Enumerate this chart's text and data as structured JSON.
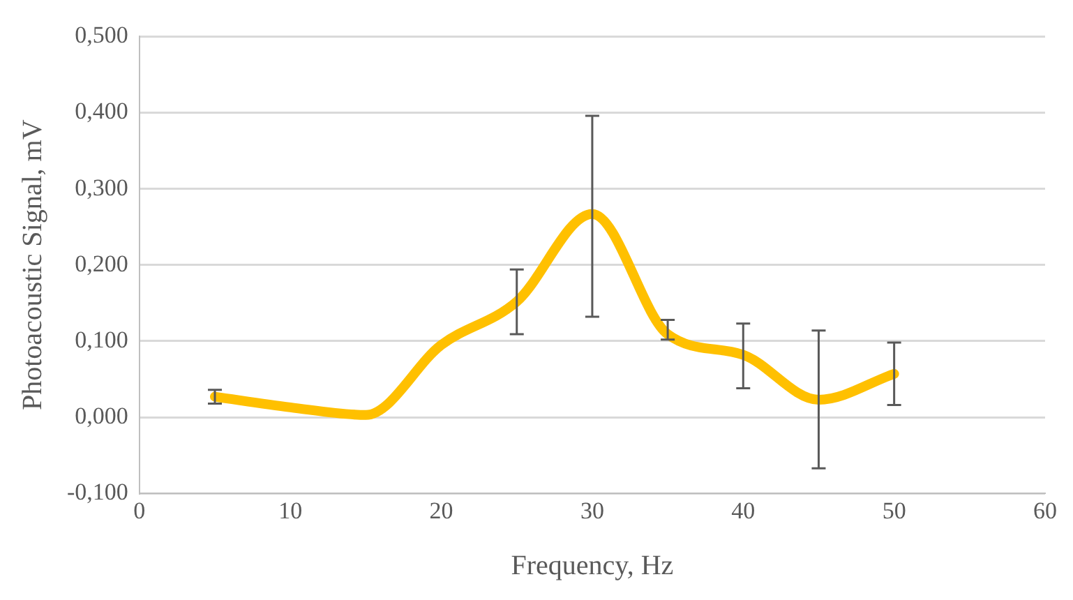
{
  "chart_data": {
    "type": "line",
    "xlabel": "Frequency, Hz",
    "ylabel": "Photoacoustic Signal, mV",
    "x": [
      5,
      10,
      15,
      20,
      25,
      30,
      35,
      40,
      45,
      50
    ],
    "series": [
      {
        "color": "#ffc000",
        "values": [
          0.027,
          0.013,
          0.003,
          0.095,
          0.152,
          0.267,
          0.109,
          0.082,
          0.023,
          0.057
        ],
        "errors": [
          [
            0.018,
            0.036
          ],
          null,
          null,
          null,
          [
            0.109,
            0.194
          ],
          [
            0.132,
            0.396
          ],
          [
            0.102,
            0.128
          ],
          [
            0.038,
            0.123
          ],
          [
            -0.067,
            0.114
          ],
          [
            0.016,
            0.098
          ]
        ]
      }
    ],
    "xlim": [
      0,
      60
    ],
    "xticks": [
      0,
      10,
      20,
      30,
      40,
      50,
      60
    ],
    "ylim": [
      -0.1,
      0.5
    ],
    "yticks": [
      {
        "value": -0.1,
        "label": "-0,100"
      },
      {
        "value": 0,
        "label": "0,000"
      },
      {
        "value": 0.1,
        "label": "0,100"
      },
      {
        "value": 0.2,
        "label": "0,200"
      },
      {
        "value": 0.3,
        "label": "0,300"
      },
      {
        "value": 0.4,
        "label": "0,400"
      },
      {
        "value": 0.5,
        "label": "0,500"
      }
    ],
    "grid": "y",
    "legend": false,
    "marker": "none",
    "line_style": "solid"
  }
}
